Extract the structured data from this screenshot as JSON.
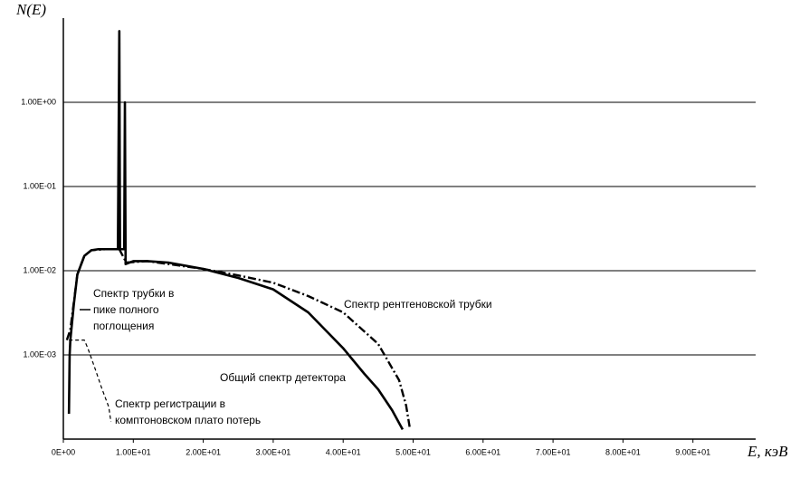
{
  "chart_data": {
    "type": "line",
    "ylabel": "N(E)",
    "xlabel": "E, кэВ",
    "yscale": "log",
    "grid": true,
    "xlim": [
      0,
      100
    ],
    "ylim": [
      0.0001,
      10
    ],
    "xticks": [
      {
        "value": 0,
        "label": "0E+00"
      },
      {
        "value": 10,
        "label": "1.00E+01"
      },
      {
        "value": 20,
        "label": "2.00E+01"
      },
      {
        "value": 30,
        "label": "3.00E+01"
      },
      {
        "value": 40,
        "label": "4.00E+01"
      },
      {
        "value": 50,
        "label": "5.00E+01"
      },
      {
        "value": 60,
        "label": "6.00E+01"
      },
      {
        "value": 70,
        "label": "7.00E+01"
      },
      {
        "value": 80,
        "label": "8.00E+01"
      },
      {
        "value": 90,
        "label": "9.00E+01"
      }
    ],
    "yticks": [
      {
        "value": 0.001,
        "label": "1.00E-03"
      },
      {
        "value": 0.01,
        "label": "1.00E-02"
      },
      {
        "value": 0.1,
        "label": "1.00E-01"
      },
      {
        "value": 1,
        "label": "1.00E+00"
      }
    ],
    "series": [
      {
        "name": "Спектр рентгеновской трубки",
        "color": "#000000",
        "dash": "dashdot",
        "x": [
          0.5,
          1,
          2,
          3,
          4,
          6,
          8,
          9,
          12,
          20,
          25,
          30,
          35,
          40,
          45,
          48,
          49,
          49.5
        ],
        "values": [
          0.0015,
          0.002,
          0.009,
          0.015,
          0.0175,
          0.018,
          0.018,
          0.0125,
          0.013,
          0.0105,
          0.0088,
          0.0072,
          0.005,
          0.0032,
          0.00135,
          0.0005,
          0.00025,
          0.00014
        ]
      },
      {
        "name": "Общий спектр детектора",
        "color": "#000000",
        "dash": "solid",
        "x": [
          0.8,
          0.9,
          1.0,
          1.5,
          2,
          3,
          4,
          5,
          6,
          7,
          7.8,
          8.0,
          8.1,
          8.7,
          8.8,
          8.9,
          10,
          12,
          15,
          20,
          25,
          30,
          35,
          40,
          43,
          45,
          47,
          48.5
        ],
        "values": [
          0.0002,
          0.001,
          0.0015,
          0.004,
          0.009,
          0.015,
          0.0175,
          0.018,
          0.018,
          0.018,
          0.018,
          7,
          0.018,
          0.018,
          1,
          0.012,
          0.013,
          0.013,
          0.0125,
          0.0105,
          0.0082,
          0.006,
          0.0032,
          0.0012,
          0.0006,
          0.00039,
          0.00022,
          0.00013
        ]
      },
      {
        "color": "#000000",
        "dash": "dash",
        "x": [
          0.8,
          1.5,
          3,
          3.5,
          4.5,
          5.5,
          6.5,
          6.8
        ],
        "values": [
          0.0015,
          0.0015,
          0.0015,
          0.0012,
          0.0007,
          0.0004,
          0.00024,
          0.00016
        ]
      }
    ],
    "annotations": [
      [
        "Спектр трубки в",
        "пике полного",
        "поглощения"
      ],
      [
        "Спектр регистрации в",
        "комптоновском плато потерь"
      ]
    ]
  }
}
